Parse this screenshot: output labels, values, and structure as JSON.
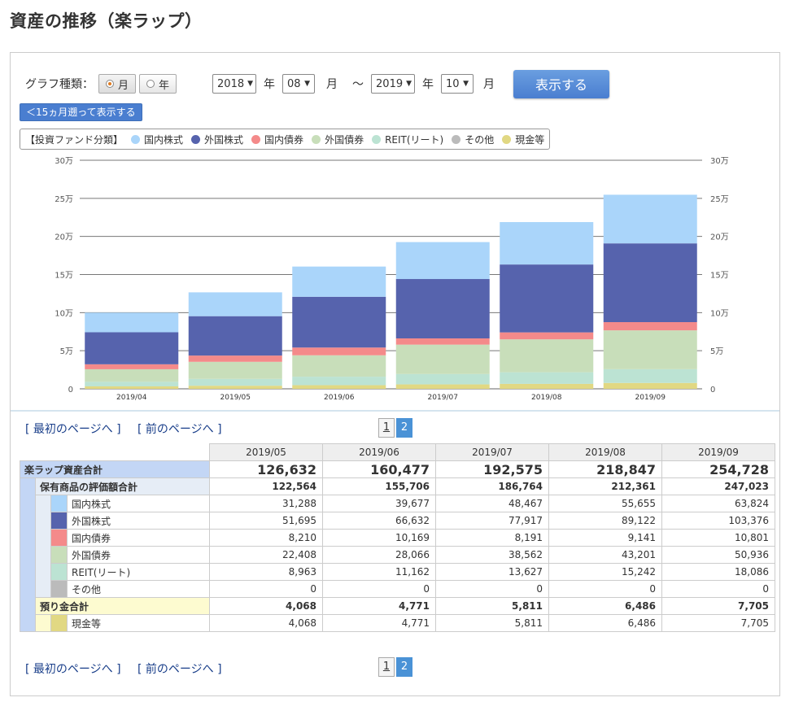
{
  "page_title": "資産の推移（楽ラップ）",
  "controls": {
    "graph_type_label": "グラフ種類：",
    "radio_month": "月",
    "radio_year": "年",
    "from_year": "2018",
    "year_unit": "年",
    "from_month": "08",
    "month_unit": "月",
    "tilde": "～",
    "to_year": "2019",
    "to_month": "10",
    "show_button": "表示する",
    "back_button": "＜15ヵ月遡って表示する"
  },
  "legend": {
    "title": "【投資ファンド分類】",
    "items": [
      {
        "label": "国内株式",
        "color": "#aad5fa"
      },
      {
        "label": "外国株式",
        "color": "#5663ad"
      },
      {
        "label": "国内債券",
        "color": "#f48a8a"
      },
      {
        "label": "外国債券",
        "color": "#c8deba"
      },
      {
        "label": "REIT(リート)",
        "color": "#bce3d3"
      },
      {
        "label": "その他",
        "color": "#bbbbbb"
      },
      {
        "label": "現金等",
        "color": "#e1d883"
      }
    ]
  },
  "chart_data": {
    "type": "bar",
    "stacked": true,
    "categories": [
      "2019/04",
      "2019/05",
      "2019/06",
      "2019/07",
      "2019/08",
      "2019/09"
    ],
    "y_ticks": [
      "0",
      "5万",
      "10万",
      "15万",
      "20万",
      "25万",
      "30万"
    ],
    "ylim": [
      0,
      300000
    ],
    "grid": true,
    "series": [
      {
        "name": "現金等",
        "color": "#e1d883",
        "values": [
          3200,
          4068,
          4771,
          5811,
          6486,
          7705
        ]
      },
      {
        "name": "その他",
        "color": "#bbbbbb",
        "values": [
          0,
          0,
          0,
          0,
          0,
          0
        ]
      },
      {
        "name": "REIT(リート)",
        "color": "#bce3d3",
        "values": [
          6000,
          8963,
          11162,
          13627,
          15242,
          18086
        ]
      },
      {
        "name": "外国債券",
        "color": "#c8deba",
        "values": [
          16500,
          22408,
          28066,
          38562,
          43201,
          50936
        ]
      },
      {
        "name": "国内債券",
        "color": "#f48a8a",
        "values": [
          6500,
          8210,
          10169,
          8191,
          9141,
          10801
        ]
      },
      {
        "name": "外国株式",
        "color": "#5663ad",
        "values": [
          42000,
          51695,
          66632,
          77917,
          89122,
          103376
        ]
      },
      {
        "name": "国内株式",
        "color": "#aad5fa",
        "values": [
          25800,
          31288,
          39677,
          48467,
          55655,
          63824
        ]
      }
    ]
  },
  "pager": {
    "first": "[ 最初のページへ ]",
    "prev": "[ 前のページへ ]",
    "pages": [
      "1",
      "2"
    ],
    "current": "2"
  },
  "table": {
    "columns": [
      "2019/05",
      "2019/06",
      "2019/07",
      "2019/08",
      "2019/09"
    ],
    "total": {
      "label": "楽ラップ資産合計",
      "values": [
        "126,632",
        "160,477",
        "192,575",
        "218,847",
        "254,728"
      ]
    },
    "holdings": {
      "label": "保有商品の評価額合計",
      "values": [
        "122,564",
        "155,706",
        "186,764",
        "212,361",
        "247,023"
      ]
    },
    "holding_rows": [
      {
        "label": "国内株式",
        "color": "#aad5fa",
        "values": [
          "31,288",
          "39,677",
          "48,467",
          "55,655",
          "63,824"
        ]
      },
      {
        "label": "外国株式",
        "color": "#5663ad",
        "values": [
          "51,695",
          "66,632",
          "77,917",
          "89,122",
          "103,376"
        ]
      },
      {
        "label": "国内債券",
        "color": "#f48a8a",
        "values": [
          "8,210",
          "10,169",
          "8,191",
          "9,141",
          "10,801"
        ]
      },
      {
        "label": "外国債券",
        "color": "#c8deba",
        "values": [
          "22,408",
          "28,066",
          "38,562",
          "43,201",
          "50,936"
        ]
      },
      {
        "label": "REIT(リート)",
        "color": "#bce3d3",
        "values": [
          "8,963",
          "11,162",
          "13,627",
          "15,242",
          "18,086"
        ]
      },
      {
        "label": "その他",
        "color": "#bbbbbb",
        "values": [
          "0",
          "0",
          "0",
          "0",
          "0"
        ]
      }
    ],
    "deposit": {
      "label": "預り金合計",
      "values": [
        "4,068",
        "4,771",
        "5,811",
        "6,486",
        "7,705"
      ]
    },
    "cash_rows": [
      {
        "label": "現金等",
        "color": "#e1d883",
        "values": [
          "4,068",
          "4,771",
          "5,811",
          "6,486",
          "7,705"
        ]
      }
    ]
  }
}
